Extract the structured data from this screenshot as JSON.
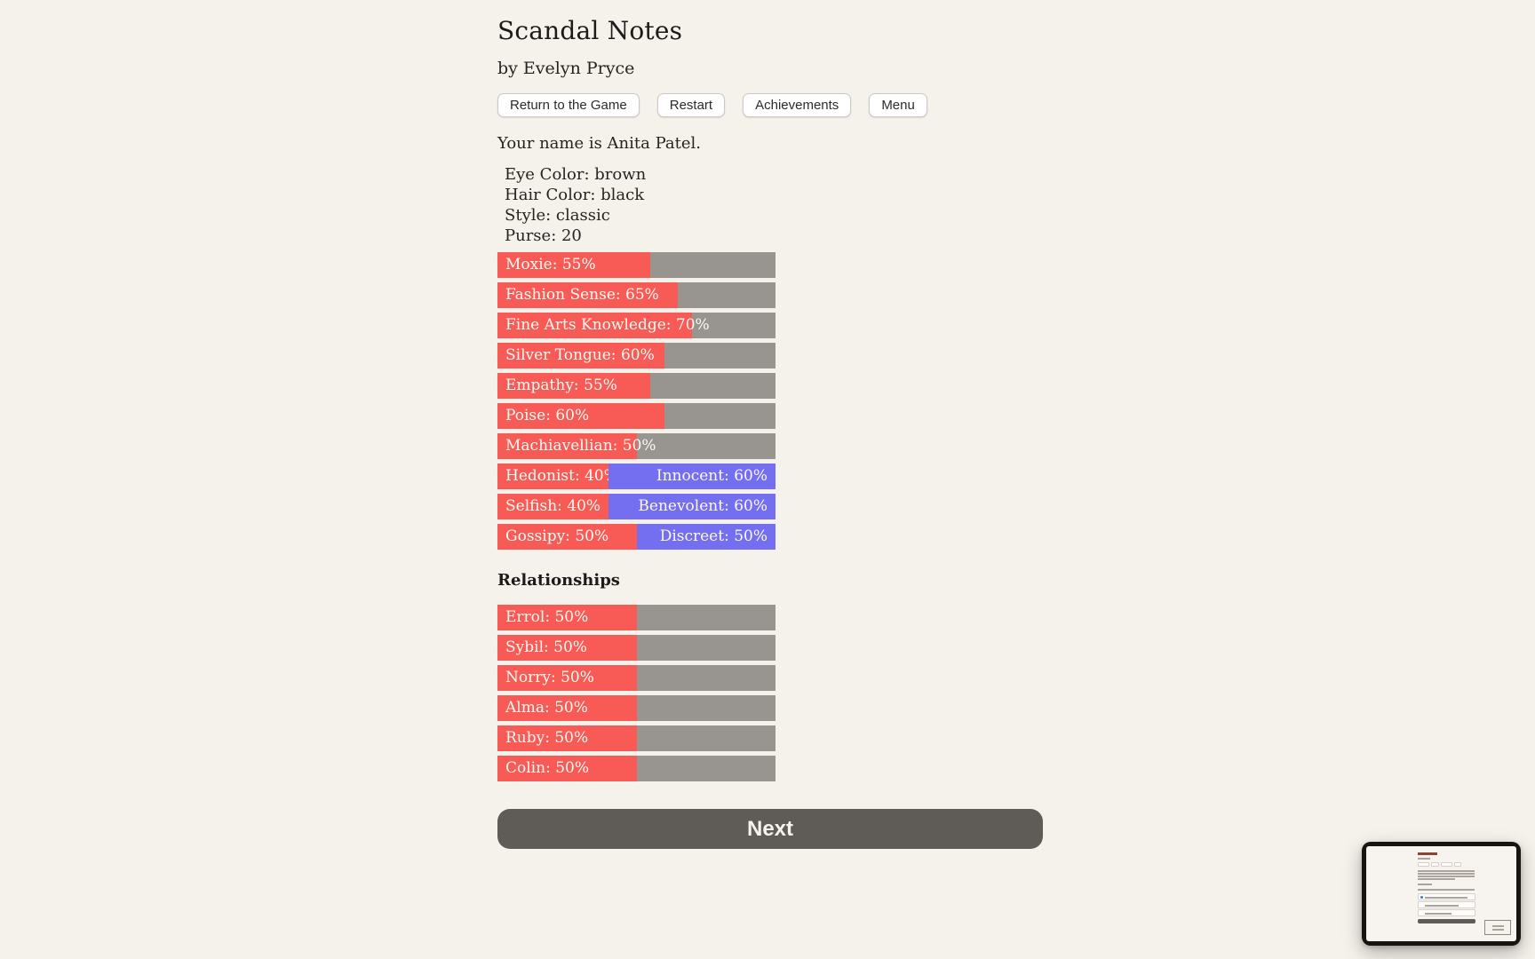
{
  "page": {
    "title": "Scandal Notes",
    "byline": "by Evelyn Pryce"
  },
  "nav": {
    "buttons": [
      {
        "label": "Return to the Game"
      },
      {
        "label": "Restart"
      },
      {
        "label": "Achievements"
      },
      {
        "label": "Menu"
      }
    ]
  },
  "character": {
    "intro": "Your name is Anita Patel.",
    "attributes": [
      "Eye Color: brown",
      "Hair Color: black",
      "Style: classic",
      "Purse: 20"
    ]
  },
  "stats": {
    "bars": [
      {
        "label": "Moxie: 55%",
        "value": 55
      },
      {
        "label": "Fashion Sense: 65%",
        "value": 65
      },
      {
        "label": "Fine Arts Knowledge: 70%",
        "value": 70
      },
      {
        "label": "Silver Tongue: 60%",
        "value": 60
      },
      {
        "label": "Empathy: 55%",
        "value": 55
      },
      {
        "label": "Poise: 60%",
        "value": 60
      },
      {
        "label": "Machiavellian: 50%",
        "value": 50
      }
    ],
    "opposed_bars": [
      {
        "left_label": "Hedonist: 40%",
        "left_value": 40,
        "right_label": "Innocent: 60%",
        "right_value": 60
      },
      {
        "left_label": "Selfish: 40%",
        "left_value": 40,
        "right_label": "Benevolent: 60%",
        "right_value": 60
      },
      {
        "left_label": "Gossipy: 50%",
        "left_value": 50,
        "right_label": "Discreet: 50%",
        "right_value": 50
      }
    ]
  },
  "relationships": {
    "heading": "Relationships",
    "bars": [
      {
        "label": "Errol: 50%",
        "value": 50
      },
      {
        "label": "Sybil: 50%",
        "value": 50
      },
      {
        "label": "Norry: 50%",
        "value": 50
      },
      {
        "label": "Alma: 50%",
        "value": 50
      },
      {
        "label": "Ruby: 50%",
        "value": 50
      },
      {
        "label": "Colin: 50%",
        "value": 50
      }
    ]
  },
  "next_button": {
    "label": "Next"
  },
  "colors": {
    "background": "#f5f1eb",
    "bar_fill": "#f85b55",
    "bar_empty": "#989490",
    "bar_opposed_right": "#746ef0",
    "next_button": "#5f5b57",
    "text": "#262422"
  }
}
